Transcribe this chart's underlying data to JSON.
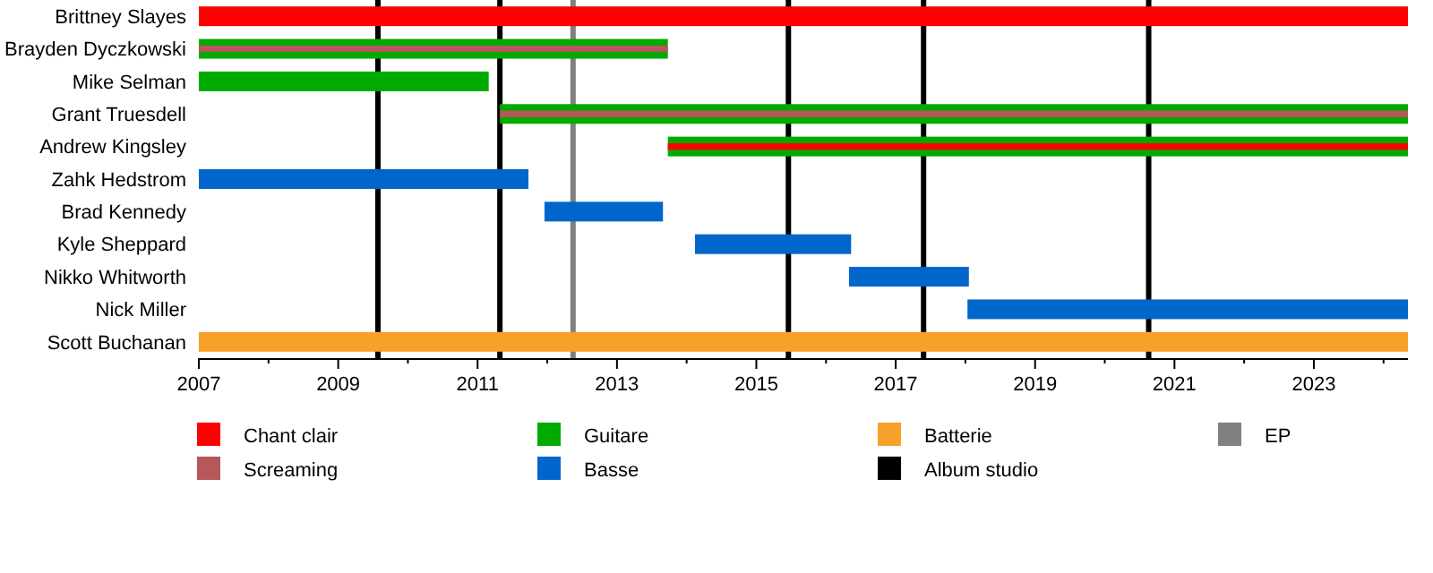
{
  "chart_data": {
    "type": "bar",
    "orientation": "horizontal",
    "categories": [
      "Brittney Slayes",
      "Brayden Dyczkowski",
      "Mike Selman",
      "Grant Truesdell",
      "Andrew Kingsley",
      "Zahk Hedstrom",
      "Brad Kennedy",
      "Kyle Sheppard",
      "Nikko Whitworth",
      "Nick Miller",
      "Scott Buchanan"
    ],
    "series": [
      {
        "name": "Chant clair",
        "color": "#ff0000",
        "base": [
          2007,
          null,
          null,
          null,
          2013.73,
          null,
          null,
          null,
          null,
          null,
          null
        ],
        "values": [
          17.35,
          null,
          null,
          null,
          10.62,
          null,
          null,
          null,
          null,
          null,
          null
        ]
      },
      {
        "name": "Screaming",
        "color": "#b5575b",
        "base": [
          null,
          2007,
          null,
          2011.32,
          null,
          null,
          null,
          null,
          null,
          null,
          null
        ],
        "values": [
          null,
          6.73,
          null,
          13.03,
          null,
          null,
          null,
          null,
          null,
          null,
          null
        ]
      },
      {
        "name": "Guitare",
        "color": "#00aa00",
        "base": [
          null,
          2007,
          2007,
          2011.32,
          2013.73,
          null,
          null,
          null,
          null,
          null,
          null
        ],
        "values": [
          null,
          6.73,
          4.16,
          13.03,
          10.62,
          null,
          null,
          null,
          null,
          null,
          null
        ]
      },
      {
        "name": "Basse",
        "color": "#0066cc",
        "base": [
          null,
          null,
          null,
          null,
          null,
          2007,
          2011.96,
          2014.12,
          2016.33,
          2018.03,
          null
        ],
        "values": [
          null,
          null,
          null,
          null,
          null,
          4.73,
          1.7,
          2.24,
          1.72,
          6.32,
          null
        ]
      },
      {
        "name": "Batterie",
        "color": "#f7a12a",
        "base": [
          null,
          null,
          null,
          null,
          null,
          null,
          null,
          null,
          null,
          null,
          2007
        ],
        "values": [
          null,
          null,
          null,
          null,
          null,
          null,
          null,
          null,
          null,
          null,
          17.35
        ]
      }
    ],
    "ref_lines": [
      {
        "axis": "x",
        "value": 2009.57,
        "label": "Album studio",
        "color": "#000000"
      },
      {
        "axis": "x",
        "value": 2011.32,
        "color": "#000000"
      },
      {
        "axis": "x",
        "value": 2012.37,
        "label": "EP",
        "color": "#808080"
      },
      {
        "axis": "x",
        "value": 2015.46,
        "color": "#000000"
      },
      {
        "axis": "x",
        "value": 2017.4,
        "color": "#000000"
      },
      {
        "axis": "x",
        "value": 2020.63,
        "color": "#000000"
      }
    ],
    "xlim": [
      2007,
      2024.35
    ],
    "xticks": [
      2007,
      {
        "value": 2008,
        "label": null
      },
      2009,
      {
        "value": 2010,
        "label": null
      },
      2011,
      {
        "value": 2012,
        "label": null
      },
      2013,
      {
        "value": 2014,
        "label": null
      },
      2015,
      {
        "value": 2016,
        "label": null
      },
      2017,
      {
        "value": 2018,
        "label": null
      },
      2019,
      {
        "value": 2020,
        "label": null
      },
      2021,
      {
        "value": 2022,
        "label": null
      },
      2023,
      {
        "value": 2024,
        "label": null
      }
    ],
    "legend": "bottom"
  }
}
